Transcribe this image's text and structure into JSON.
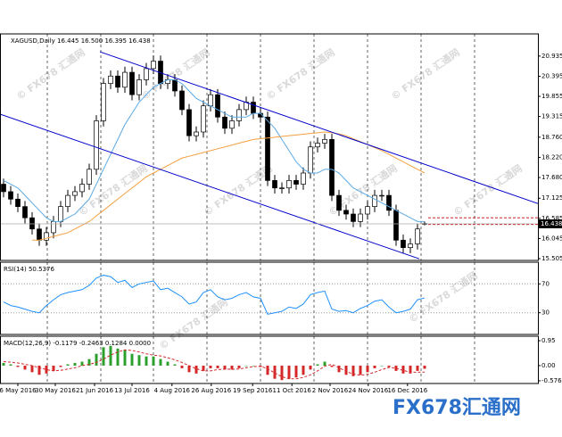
{
  "chart_data": [
    {
      "type": "candlestick",
      "title": "XAGUSD,Daily 16.445 16.500 16.395 16.438",
      "open": [
        17.5,
        17.3,
        17.1,
        16.9,
        16.6,
        16.3,
        16.0,
        16.2,
        16.5,
        16.9,
        17.2,
        17.3,
        17.5,
        17.9,
        19.2,
        20.2,
        20.4,
        20.1,
        20.5,
        19.9,
        20.3,
        20.6,
        20.8,
        20.2,
        20.3,
        20.0,
        19.5,
        18.8,
        18.9,
        19.6,
        19.9,
        19.3,
        19.0,
        19.2,
        19.5,
        19.7,
        19.4,
        19.3,
        17.6,
        17.4,
        17.4,
        17.6,
        17.5,
        17.8,
        18.5,
        18.6,
        18.7,
        17.2,
        16.8,
        16.7,
        16.5,
        16.7,
        16.9,
        17.2,
        17.2,
        16.8,
        16.0,
        15.8,
        15.9,
        16.445
      ],
      "high": [
        17.65,
        17.45,
        17.25,
        17.05,
        16.75,
        16.45,
        16.35,
        16.65,
        17.05,
        17.35,
        17.45,
        17.65,
        18.05,
        19.35,
        20.35,
        20.55,
        20.55,
        20.65,
        20.65,
        20.45,
        20.75,
        20.95,
        20.95,
        20.45,
        20.45,
        20.15,
        19.65,
        19.05,
        19.75,
        20.05,
        20.05,
        19.45,
        19.35,
        19.65,
        19.85,
        19.85,
        19.55,
        19.45,
        17.75,
        17.55,
        17.75,
        17.75,
        17.95,
        18.65,
        18.75,
        18.85,
        18.85,
        17.35,
        16.95,
        16.85,
        16.85,
        17.05,
        17.35,
        17.35,
        17.35,
        16.95,
        16.15,
        16.05,
        16.45,
        16.5
      ],
      "low": [
        17.15,
        16.95,
        16.75,
        16.45,
        16.15,
        15.85,
        15.85,
        16.05,
        16.35,
        16.75,
        17.05,
        17.15,
        17.35,
        17.75,
        19.05,
        20.05,
        19.95,
        19.95,
        19.75,
        19.75,
        20.15,
        20.45,
        20.05,
        20.05,
        19.85,
        19.35,
        18.65,
        18.65,
        18.75,
        19.45,
        19.15,
        18.85,
        18.85,
        19.05,
        19.35,
        19.25,
        19.15,
        17.45,
        17.25,
        17.25,
        17.25,
        17.35,
        17.35,
        17.65,
        18.35,
        18.45,
        17.05,
        16.65,
        16.55,
        16.35,
        16.35,
        16.55,
        16.75,
        17.05,
        16.65,
        15.85,
        15.65,
        15.65,
        15.75,
        16.395
      ],
      "close": [
        17.3,
        17.1,
        16.9,
        16.6,
        16.3,
        16.0,
        16.2,
        16.5,
        16.9,
        17.2,
        17.3,
        17.5,
        17.9,
        19.2,
        20.2,
        20.4,
        20.1,
        20.5,
        19.9,
        20.3,
        20.6,
        20.8,
        20.2,
        20.3,
        20.0,
        19.5,
        18.8,
        18.9,
        19.6,
        19.9,
        19.3,
        19.0,
        19.2,
        19.5,
        19.7,
        19.4,
        19.3,
        17.6,
        17.4,
        17.4,
        17.6,
        17.5,
        17.8,
        18.5,
        18.6,
        18.7,
        17.2,
        16.8,
        16.7,
        16.5,
        16.7,
        16.9,
        17.2,
        17.2,
        16.8,
        16.0,
        15.8,
        15.9,
        16.3,
        16.438
      ],
      "up_color": "#ffffff",
      "down_color": "#000000",
      "moving_averages": [
        {
          "color": "#5aa9e6",
          "values": [
            17.6,
            17.5,
            17.4,
            17.2,
            17.0,
            16.8,
            16.6,
            16.5,
            16.5,
            16.6,
            16.7,
            16.9,
            17.1,
            17.5,
            17.9,
            18.3,
            18.7,
            19.1,
            19.4,
            19.7,
            19.9,
            20.1,
            20.2,
            20.3,
            20.3,
            20.2,
            20.0,
            19.8,
            19.7,
            19.6,
            19.5,
            19.4,
            19.3,
            19.3,
            19.3,
            19.4,
            19.4,
            19.2,
            19.0,
            18.7,
            18.4,
            18.1,
            17.9,
            17.8,
            17.8,
            17.9,
            17.9,
            17.8,
            17.6,
            17.4,
            17.3,
            17.2,
            17.1,
            17.0,
            16.9,
            16.8,
            16.7,
            16.6,
            16.5,
            16.5
          ]
        },
        {
          "color": "#f5a040",
          "values": [
            null,
            null,
            null,
            null,
            16.0,
            16.0,
            16.05,
            16.1,
            16.15,
            16.2,
            16.3,
            16.4,
            16.5,
            16.65,
            16.8,
            16.95,
            17.1,
            17.25,
            17.4,
            17.55,
            17.7,
            17.8,
            17.9,
            18.0,
            18.1,
            18.2,
            18.25,
            18.3,
            18.35,
            18.4,
            18.45,
            18.5,
            18.55,
            18.6,
            18.65,
            18.7,
            18.72,
            18.74,
            18.76,
            18.78,
            18.8,
            18.82,
            18.84,
            18.86,
            18.88,
            18.9,
            18.88,
            18.85,
            18.8,
            18.72,
            18.64,
            18.56,
            18.48,
            18.4,
            18.3,
            18.2,
            18.1,
            18.0,
            17.9,
            17.8
          ]
        }
      ],
      "trendlines": [
        {
          "color": "#0000cc",
          "x": [
            13.5,
            74.9
          ],
          "y": [
            21.05,
            16.98
          ]
        },
        {
          "color": "#0000cc",
          "x": [
            -0.5,
            58.25
          ],
          "y": [
            19.38,
            15.5
          ]
        }
      ],
      "levels": [
        {
          "value": 16.6,
          "color": "#cc0000"
        },
        {
          "value": 16.42,
          "color": "#cc0000"
        }
      ],
      "ylim": [
        15.457,
        21.53
      ],
      "yticks": [
        20.935,
        20.395,
        19.855,
        19.315,
        {
          "value": 18.76,
          "label": "18.760"
        },
        {
          "value": 18.22,
          "label": "18.220"
        },
        {
          "value": 17.68,
          "label": "17.680"
        },
        17.125,
        16.585,
        16.045,
        15.505
      ],
      "xticks": [
        {
          "value": 2,
          "label": "6 May 2016"
        },
        {
          "value": 7.25,
          "label": "30 May 2016"
        },
        {
          "value": 12.75,
          "label": "21 Jun 2016"
        },
        {
          "value": 18,
          "label": "13 Jul 2016"
        },
        {
          "value": 23.6,
          "label": "4 Aug 2016"
        },
        {
          "value": 29.1,
          "label": "26 Aug 2016"
        },
        {
          "value": 34.9,
          "label": "19 Sep 2016"
        },
        {
          "value": 40.4,
          "label": "11 Oct 2016"
        },
        {
          "value": 45.75,
          "label": "2 Nov 2016"
        },
        {
          "value": 51.1,
          "label": "24 Nov 2016"
        },
        {
          "value": 56.6,
          "label": "16 Dec 2016"
        }
      ]
    },
    {
      "type": "line",
      "title": "RSI(14) 50.5376",
      "series": [
        {
          "color": "#1e90ff",
          "values": [
            45,
            40,
            38,
            35,
            32,
            30,
            40,
            48,
            55,
            58,
            60,
            62,
            68,
            78,
            82,
            80,
            72,
            75,
            65,
            70,
            72,
            74,
            62,
            64,
            58,
            52,
            42,
            45,
            58,
            62,
            52,
            48,
            50,
            55,
            58,
            52,
            50,
            28,
            30,
            32,
            38,
            36,
            42,
            55,
            58,
            60,
            35,
            32,
            33,
            30,
            36,
            40,
            46,
            48,
            38,
            30,
            32,
            35,
            48,
            50.5376
          ]
        }
      ],
      "ylim": [
        0,
        100
      ],
      "yticks": [
        70,
        30
      ]
    },
    {
      "type": "bar",
      "title": "MACD(12,26,9) -0.1179 -0.2463 0.1284 0.0000",
      "values": [
        0.1,
        0.05,
        -0.05,
        -0.15,
        -0.25,
        -0.35,
        -0.3,
        -0.2,
        -0.05,
        0.05,
        0.1,
        0.15,
        0.25,
        0.45,
        0.7,
        0.75,
        0.65,
        0.6,
        0.45,
        0.4,
        0.35,
        0.35,
        0.25,
        0.15,
        0.05,
        -0.1,
        -0.25,
        -0.3,
        -0.2,
        -0.1,
        -0.1,
        -0.15,
        -0.15,
        -0.1,
        0.0,
        0.0,
        -0.05,
        -0.35,
        -0.5,
        -0.55,
        -0.5,
        -0.45,
        -0.35,
        -0.15,
        0.05,
        0.15,
        -0.05,
        -0.25,
        -0.35,
        -0.4,
        -0.35,
        -0.25,
        -0.1,
        0.0,
        -0.05,
        -0.2,
        -0.3,
        -0.3,
        -0.2,
        -0.1179
      ],
      "positive_color": "#2ca02c",
      "negative_color": "#d62728",
      "signal": {
        "color": "#d62728",
        "values": [
          0.15,
          0.13,
          0.1,
          0.05,
          0.0,
          -0.08,
          -0.15,
          -0.2,
          -0.18,
          -0.13,
          -0.08,
          0.0,
          0.05,
          0.12,
          0.25,
          0.4,
          0.52,
          0.6,
          0.58,
          0.52,
          0.45,
          0.4,
          0.37,
          0.3,
          0.22,
          0.12,
          0.0,
          -0.12,
          -0.2,
          -0.2,
          -0.15,
          -0.13,
          -0.14,
          -0.13,
          -0.08,
          -0.04,
          -0.02,
          -0.12,
          -0.28,
          -0.42,
          -0.5,
          -0.5,
          -0.45,
          -0.35,
          -0.2,
          -0.02,
          0.05,
          -0.08,
          -0.22,
          -0.32,
          -0.37,
          -0.33,
          -0.25,
          -0.15,
          -0.07,
          -0.1,
          -0.18,
          -0.25,
          -0.25,
          -0.2463
        ]
      },
      "ylim": [
        -0.68,
        1.12
      ],
      "yticks": [
        0.95,
        {
          "value": 0,
          "label": "0.00"
        },
        -0.5762
      ]
    }
  ],
  "watermark": "© FX678 汇通网",
  "logo": "FX678汇通网"
}
